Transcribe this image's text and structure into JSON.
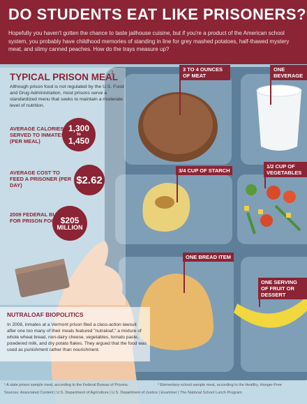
{
  "header": {
    "title": "DO STUDENTS EAT LIKE PRISONERS?",
    "intro": "Hopefully you haven't gotten the chance to taste jailhouse cuisine, but if you're a product of the American school system, you probably have childhood memories of standing in line for grey mashed potatoes, half-thawed mystery meat, and slimy canned peaches. How do the trays measure up?"
  },
  "prison_meal": {
    "title": "TYPICAL PRISON MEAL",
    "footnote_mark": "1",
    "description": "Although prison food is not regulated by the U.S. Food and Drug Administration, most prisons serve a standardized menu that seeks to maintain a moderate level of nutrition.",
    "stats": [
      {
        "label": "AVERAGE CALORIES SERVED TO INMATES (PER MEAL)",
        "value_lines": [
          "1,300",
          "to",
          "1,450"
        ]
      },
      {
        "label": "AVERAGE COST TO FEED A PRISONER (PER DAY)",
        "value_lines": [
          "$2.62"
        ]
      },
      {
        "label": "2009 FEDERAL BUDGET FOR PRISON FOOD",
        "value_lines": [
          "$205",
          "MILLION"
        ]
      }
    ]
  },
  "tray_labels": [
    "3 TO 4 OUNCES OF MEAT",
    "ONE BEVERAGE",
    "3/4 CUP OF STARCH",
    "1/2 CUP OF VEGETABLES",
    "ONE  BREAD ITEM",
    "ONE SERVING OF FRUIT OR DESSERT"
  ],
  "nutraloaf": {
    "title": "NUTRALOAF BIOPOLITICS",
    "text": "In 2008, inmates at a Vermont prison filed a class-action lawsuit after one too many of their meals featured \"nutraloaf,\" a mixture of whole wheat bread, non-dairy cheese, vegetables, tomato paste, powdered milk, and dry potato flakes. They argued that the food was used as punishment rather than nourishment."
  },
  "footer": {
    "footnotes": [
      "¹ A state prison sample meal, according to the Federal Bureau of Prisons.",
      "² Elementary-school sample meal, according to the Healthy, Hunger-Free"
    ],
    "sources": "Sources: Associated Content | U.S. Department of Agriculture | U.S. Department of Justice | Examiner | The National School Lunch Program"
  }
}
